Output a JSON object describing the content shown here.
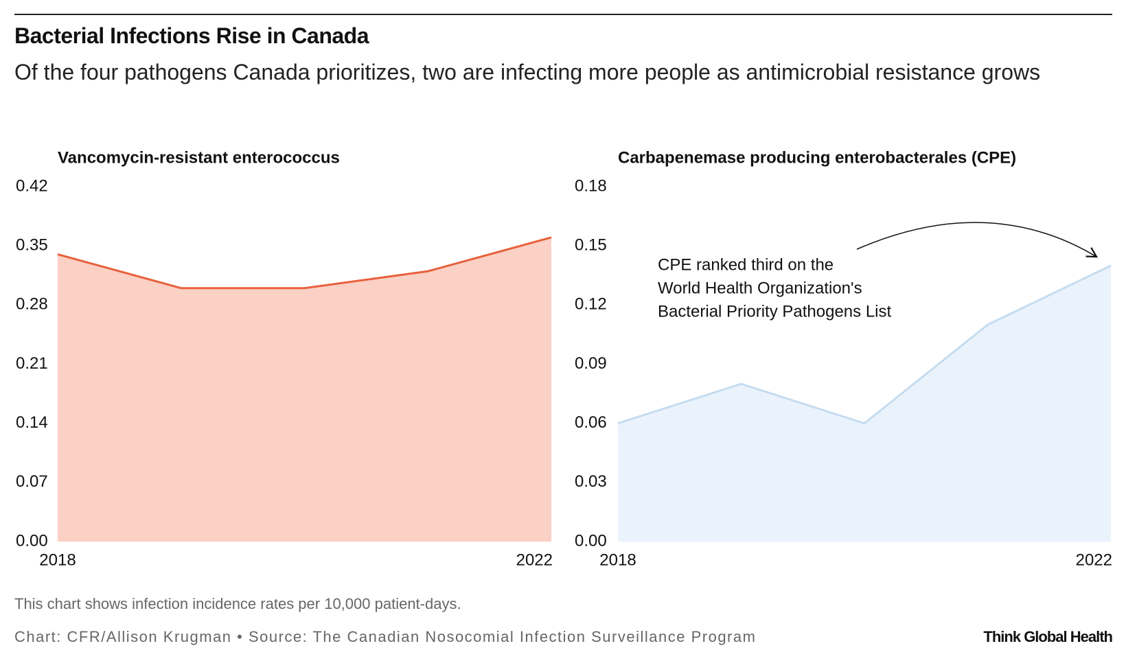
{
  "header": {
    "title": "Bacterial Infections Rise in Canada",
    "subtitle": "Of the four pathogens Canada prioritizes, two are infecting more people as antimicrobial resistance grows"
  },
  "chart_data": [
    {
      "type": "area",
      "title": "Vancomycin-resistant enterococcus",
      "x": [
        2018,
        2019,
        2020,
        2021,
        2022
      ],
      "xlim": [
        2018,
        2022
      ],
      "xticks": [
        2018,
        2022
      ],
      "series": [
        {
          "color": "#e8603c",
          "fill": "#fbd0c5",
          "values": [
            0.34,
            0.3,
            0.3,
            0.32,
            0.36
          ]
        }
      ],
      "ylim": [
        0,
        0.42
      ],
      "yticks": [
        {
          "value": 0,
          "label": "0.00"
        },
        0.07,
        0.14,
        0.21,
        0.28,
        0.35,
        0.42
      ]
    },
    {
      "type": "area",
      "title": "Carbapenemase producing enterobacterales (CPE)",
      "x": [
        2018,
        2019,
        2020,
        2021,
        2022
      ],
      "xlim": [
        2018,
        2022
      ],
      "xticks": [
        2018,
        2022
      ],
      "series": [
        {
          "color": "#c5dcf0",
          "fill": "#eaf3fc",
          "values": [
            0.06,
            0.08,
            0.06,
            0.11,
            0.14
          ]
        }
      ],
      "ylim": [
        0,
        0.18
      ],
      "yticks": [
        {
          "value": 0,
          "label": "0.00"
        },
        0.03,
        0.06,
        0.09,
        0.12,
        0.15,
        0.18
      ],
      "annotation": [
        "CPE ranked third on the",
        "World Health Organization's",
        "Bacterial Priority Pathogens List"
      ]
    }
  ],
  "footer": {
    "note": "This chart shows infection incidence rates per 10,000 patient-days.",
    "credit": "Chart: CFR/Allison Krugman • Source: The Canadian Nosocomial Infection Surveillance Program",
    "brand": "Think Global Health"
  }
}
